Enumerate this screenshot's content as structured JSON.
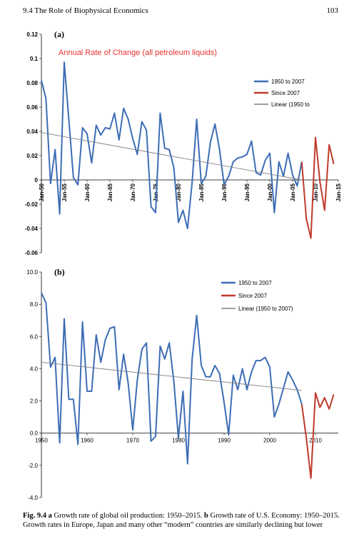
{
  "header": {
    "left": "9.4   The Role of Biophysical Economics",
    "right": "103"
  },
  "caption": {
    "fig": "Fig. 9.4",
    "a_letter": "a",
    "a_text": " Growth rate of global oil production: 1950–2015. ",
    "b_letter": "b",
    "b_text": " Growth rate of U.S. Economy: 1950–2015. Growth rates in Europe, Japan and many other “modern” countries are similarly declining but lower"
  },
  "colors": {
    "blue": "#3d6db5",
    "red": "#c0392b",
    "trend": "#808080",
    "annotation": "#e8312f"
  },
  "chart_data": [
    {
      "type": "line",
      "panel_label": "(a)",
      "title": "Annual Rate of Change (all petroleum liquids)",
      "ylim": [
        -0.06,
        0.12
      ],
      "y_ticks": [
        "0.12",
        "0.1",
        "0.08",
        "0.06",
        "0.04",
        "0.02",
        "0",
        "-0.02",
        "-0.04",
        "-0.06"
      ],
      "x_tick_labels": [
        "Jan-50",
        "Jan-55",
        "Jan-60",
        "Jan-65",
        "Jan-70",
        "Jan-75",
        "Jan-80",
        "Jan-85",
        "Jan-90",
        "Jan-95",
        "Jan-00",
        "Jan-05",
        "Jan-10",
        "Jan-15"
      ],
      "x_ticks_years": [
        1950,
        1955,
        1960,
        1965,
        1970,
        1975,
        1980,
        1985,
        1990,
        1995,
        2000,
        2005,
        2010,
        2015
      ],
      "xlim": [
        1950,
        2015
      ],
      "legend": [
        "1950 to 2007",
        "Since 2007",
        "Linear (1950 to"
      ],
      "series": [
        {
          "name": "1950 to 2007",
          "x": [
            1950,
            1951,
            1952,
            1953,
            1954,
            1955,
            1956,
            1957,
            1958,
            1959,
            1960,
            1961,
            1962,
            1963,
            1964,
            1965,
            1966,
            1967,
            1968,
            1969,
            1970,
            1971,
            1972,
            1973,
            1974,
            1975,
            1976,
            1977,
            1978,
            1979,
            1980,
            1981,
            1982,
            1983,
            1984,
            1985,
            1986,
            1987,
            1988,
            1989,
            1990,
            1991,
            1992,
            1993,
            1994,
            1995,
            1996,
            1997,
            1998,
            1999,
            2000,
            2001,
            2002,
            2003,
            2004,
            2005,
            2006,
            2007
          ],
          "values": [
            0.082,
            0.067,
            -0.003,
            0.025,
            -0.028,
            0.097,
            0.05,
            0.002,
            -0.004,
            0.043,
            0.038,
            0.014,
            0.045,
            0.037,
            0.043,
            0.042,
            0.055,
            0.033,
            0.059,
            0.05,
            0.034,
            0.021,
            0.048,
            0.041,
            -0.022,
            -0.027,
            0.055,
            0.026,
            0.025,
            0.01,
            -0.035,
            -0.025,
            -0.04,
            -0.002,
            0.05,
            -0.003,
            0.003,
            0.031,
            0.046,
            0.025,
            -0.004,
            0.003,
            0.015,
            0.018,
            0.019,
            0.021,
            0.032,
            0.006,
            0.004,
            0.016,
            0.022,
            -0.027,
            0.015,
            0.003,
            0.022,
            0.004,
            -0.005,
            0.015
          ]
        },
        {
          "name": "Since 2007",
          "x": [
            2007,
            2008,
            2009,
            2010,
            2011,
            2012,
            2013,
            2014
          ],
          "values": [
            0.015,
            -0.032,
            -0.048,
            0.035,
            -0.002,
            -0.025,
            0.029,
            0.013
          ]
        },
        {
          "name": "Linear (1950 to",
          "x": [
            1950,
            2007
          ],
          "values": [
            0.039,
            0.0
          ]
        }
      ]
    },
    {
      "type": "line",
      "panel_label": "(b)",
      "ylim": [
        -4.0,
        10.0
      ],
      "y_ticks": [
        "10.0",
        "8.0",
        "6.0",
        "4.0",
        "2.0",
        "0.0",
        "-2.0",
        "-4.0"
      ],
      "x_tick_labels": [
        "1950",
        "1960",
        "1970",
        "1980",
        "1990",
        "2000",
        "2010"
      ],
      "x_ticks_years": [
        1950,
        1960,
        1970,
        1980,
        1990,
        2000,
        2010
      ],
      "xlim": [
        1950,
        2015
      ],
      "legend": [
        "1950 to 2007",
        "Since 2007",
        "Linear (1950 to 2007)"
      ],
      "series": [
        {
          "name": "1950 to 2007",
          "x": [
            1950,
            1951,
            1952,
            1953,
            1954,
            1955,
            1956,
            1957,
            1958,
            1959,
            1960,
            1961,
            1962,
            1963,
            1964,
            1965,
            1966,
            1967,
            1968,
            1969,
            1970,
            1971,
            1972,
            1973,
            1974,
            1975,
            1976,
            1977,
            1978,
            1979,
            1980,
            1981,
            1982,
            1983,
            1984,
            1985,
            1986,
            1987,
            1988,
            1989,
            1990,
            1991,
            1992,
            1993,
            1994,
            1995,
            1996,
            1997,
            1998,
            1999,
            2000,
            2001,
            2002,
            2003,
            2004,
            2005,
            2006,
            2007
          ],
          "values": [
            8.7,
            8.1,
            4.1,
            4.7,
            -0.6,
            7.1,
            2.1,
            2.1,
            -0.7,
            6.9,
            2.6,
            2.6,
            6.1,
            4.4,
            5.8,
            6.5,
            6.6,
            2.7,
            4.9,
            3.1,
            0.2,
            3.3,
            5.2,
            5.6,
            -0.5,
            -0.2,
            5.4,
            4.6,
            5.6,
            3.2,
            -0.3,
            2.6,
            -1.9,
            4.6,
            7.3,
            4.2,
            3.5,
            3.5,
            4.2,
            3.7,
            1.9,
            -0.1,
            3.6,
            2.7,
            4.0,
            2.7,
            3.8,
            4.5,
            4.5,
            4.7,
            4.1,
            1.0,
            1.8,
            2.8,
            3.8,
            3.3,
            2.7,
            1.8
          ]
        },
        {
          "name": "Since 2007",
          "x": [
            2007,
            2008,
            2009,
            2010,
            2011,
            2012,
            2013,
            2014
          ],
          "values": [
            1.8,
            -0.3,
            -2.8,
            2.5,
            1.6,
            2.2,
            1.5,
            2.4
          ]
        },
        {
          "name": "Linear (1950 to 2007)",
          "x": [
            1950,
            2007
          ],
          "values": [
            4.4,
            2.65
          ]
        }
      ]
    }
  ]
}
